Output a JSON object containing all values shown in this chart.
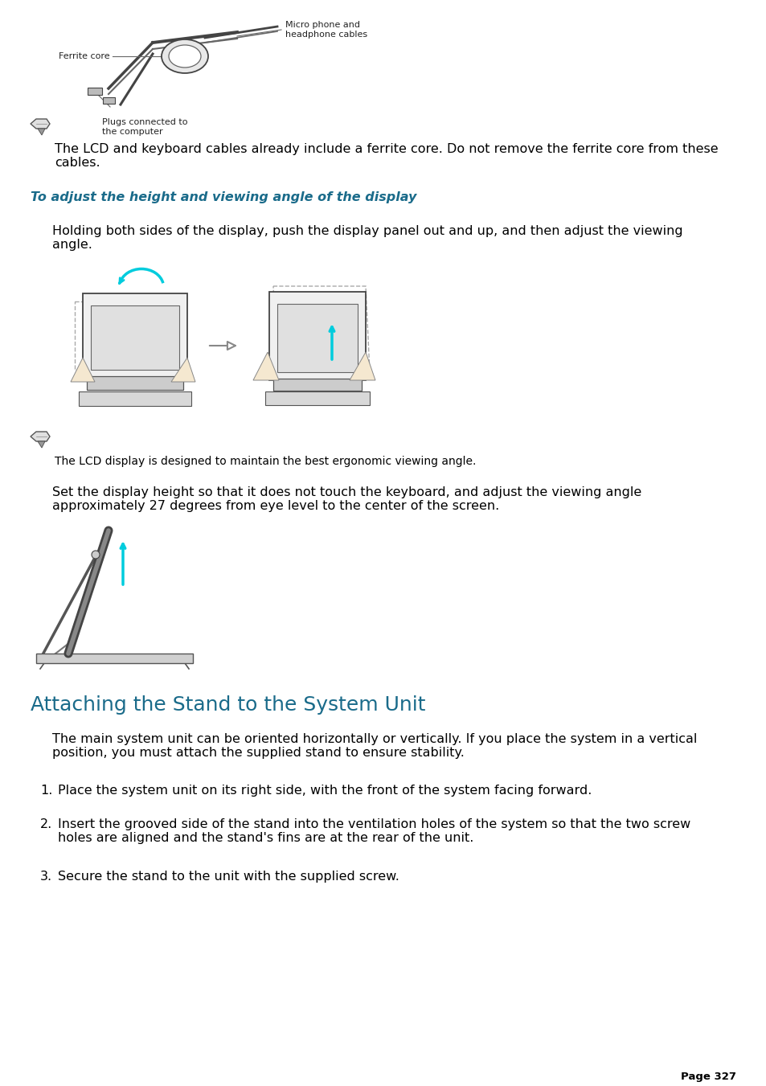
{
  "bg_color": "#ffffff",
  "page_number": "Page 327",
  "heading_color": "#1a6b8a",
  "text_color": "#000000",
  "section_title": "Attaching the Stand to the System Unit",
  "subsection_title": "To adjust the height and viewing angle of the display",
  "note1_text": "The LCD and keyboard cables already include a ferrite core. Do not remove the ferrite core from these\ncables.",
  "note2_text": "The LCD display is designed to maintain the best ergonomic viewing angle.",
  "body1_text": "Holding both sides of the display, push the display panel out and up, and then adjust the viewing\nangle.",
  "body2_text": "Set the display height so that it does not touch the keyboard, and adjust the viewing angle\napproximately 27 degrees from eye level to the center of the screen.",
  "section_intro": "The main system unit can be oriented horizontally or vertically. If you place the system in a vertical\nposition, you must attach the supplied stand to ensure stability.",
  "step1": "Place the system unit on its right side, with the front of the system facing forward.",
  "step2": "Insert the grooved side of the stand into the ventilation holes of the system so that the two screw\nholes are aligned and the stand's fins are at the rear of the unit.",
  "step3": "Secure the stand to the unit with the supplied screw.",
  "ferrite_label1": "Ferrite core",
  "ferrite_label2": "Micro phone and\nheadphone cables",
  "ferrite_label3": "Plugs connected to\nthe computer",
  "font_size_body": 11.5,
  "font_size_heading": 18,
  "font_size_subsection": 11.5,
  "font_size_note": 10,
  "font_size_page": 9.5,
  "font_size_label": 8
}
